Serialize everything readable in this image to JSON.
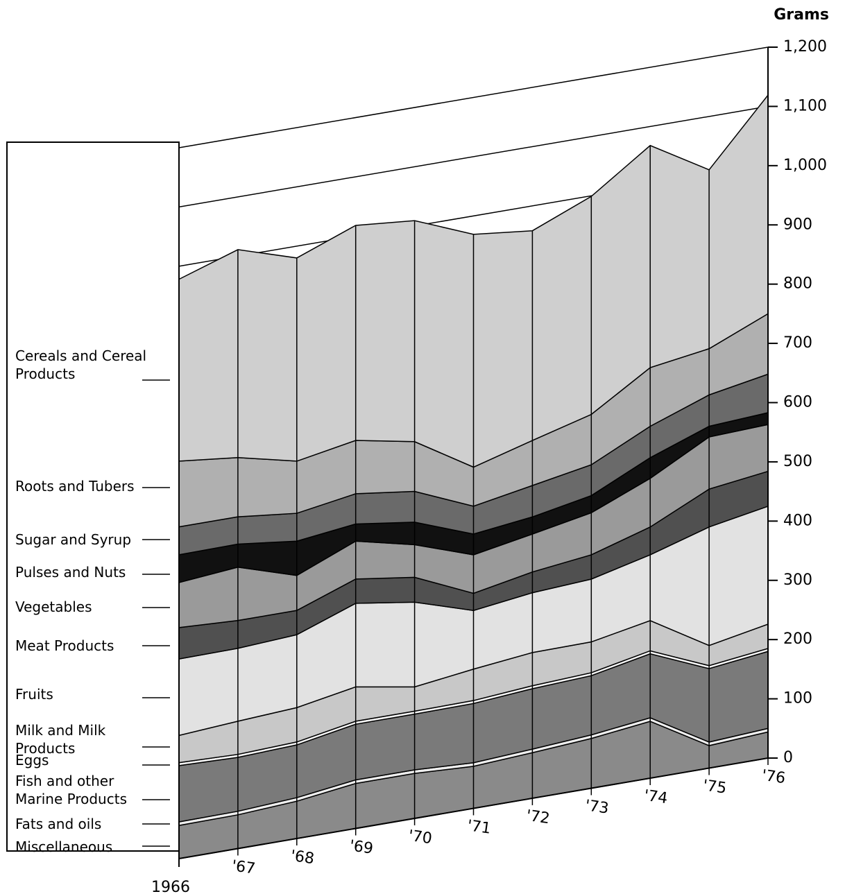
{
  "chart_data": {
    "type": "stacked_area",
    "y_label": "Grams",
    "categories": [
      "1966",
      "'67",
      "'68",
      "'69",
      "'70",
      "'71",
      "'72",
      "'73",
      "'74",
      "'75",
      "'76"
    ],
    "ylim": [
      0,
      1200
    ],
    "yticks": [
      0,
      100,
      200,
      300,
      400,
      500,
      600,
      700,
      800,
      900,
      {
        "value": 1000,
        "label": "1,000"
      },
      {
        "value": 1100,
        "label": "1,100"
      },
      {
        "value": 1200,
        "label": "1,200"
      }
    ],
    "series": [
      {
        "name": "Miscellaneous",
        "color": "#8a8a8a",
        "values": [
          56,
          57,
          63,
          76,
          76,
          71,
          77,
          84,
          96,
          38,
          44
        ]
      },
      {
        "name": "Fats and oils",
        "color": "#eeeeee",
        "values": [
          6,
          6,
          6,
          6,
          6,
          6,
          6,
          6,
          6,
          6,
          6
        ]
      },
      {
        "name": "Fish and other Marine Products",
        "color": "#7a7a7a",
        "values": [
          95,
          91,
          89,
          94,
          94,
          100,
          102,
          100,
          108,
          124,
          130
        ]
      },
      {
        "name": "Eggs",
        "color": "#f6f6f6",
        "values": [
          5,
          5,
          5,
          5,
          5,
          5,
          5,
          5,
          5,
          5,
          5
        ]
      },
      {
        "name": "Milk and Milk Products",
        "color": "#c8c8c8",
        "values": [
          46,
          56,
          58,
          58,
          41,
          53,
          56,
          52,
          51,
          34,
          41
        ]
      },
      {
        "name": "Fruits",
        "color": "#e2e2e2",
        "values": [
          129,
          123,
          123,
          141,
          143,
          99,
          101,
          106,
          111,
          200,
          199
        ]
      },
      {
        "name": "Meat Products",
        "color": "#505050",
        "values": [
          53,
          47,
          41,
          41,
          42,
          29,
          35,
          41,
          47,
          64,
          59
        ]
      },
      {
        "name": "Vegetables",
        "color": "#9a9a9a",
        "values": [
          76,
          90,
          59,
          64,
          55,
          65,
          64,
          71,
          82,
          88,
          79
        ]
      },
      {
        "name": "Pulses and Nuts",
        "color": "#111111",
        "values": [
          47,
          39,
          58,
          29,
          38,
          35,
          29,
          29,
          35,
          18,
          20
        ]
      },
      {
        "name": "Sugar and Syrup",
        "color": "#6a6a6a",
        "values": [
          47,
          46,
          47,
          51,
          52,
          47,
          53,
          52,
          53,
          53,
          65
        ]
      },
      {
        "name": "Roots and Tubers",
        "color": "#b0b0b0",
        "values": [
          111,
          100,
          88,
          90,
          84,
          66,
          76,
          85,
          99,
          78,
          102
        ]
      },
      {
        "name": "Cereals and Cereal Products",
        "color": "#cfcfcf",
        "values": [
          307,
          351,
          343,
          363,
          373,
          393,
          354,
          368,
          375,
          302,
          369
        ]
      }
    ]
  }
}
